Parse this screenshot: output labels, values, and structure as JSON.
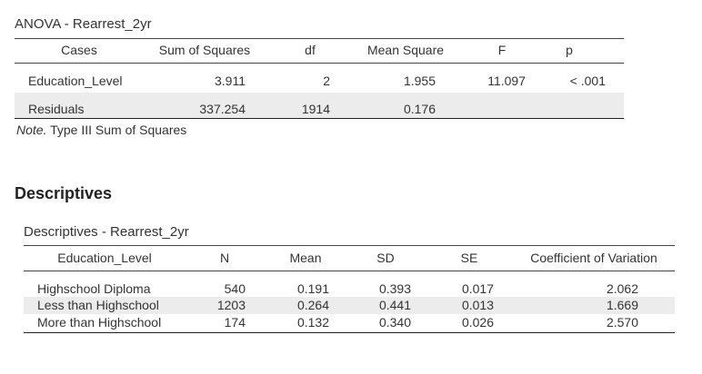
{
  "anova": {
    "title": "ANOVA - Rearrest_2yr",
    "columns": [
      "Cases",
      "Sum of Squares",
      "df",
      "Mean Square",
      "F",
      "p"
    ],
    "rows": [
      {
        "case": "Education_Level",
        "ss": "3.911",
        "df": "2",
        "ms": "1.955",
        "f": "11.097",
        "p": "< .001"
      },
      {
        "case": "Residuals",
        "ss": "337.254",
        "df": "1914",
        "ms": "0.176",
        "f": "",
        "p": ""
      }
    ],
    "note_label": "Note.",
    "note_text": " Type III Sum of Squares"
  },
  "descriptives": {
    "heading": "Descriptives",
    "title": "Descriptives - Rearrest_2yr",
    "columns": [
      "Education_Level",
      "N",
      "Mean",
      "SD",
      "SE",
      "Coefficient of Variation"
    ],
    "rows": [
      {
        "level": "Highschool Diploma",
        "n": "540",
        "mean": "0.191",
        "sd": "0.393",
        "se": "0.017",
        "cv": "2.062"
      },
      {
        "level": "Less than Highschool",
        "n": "1203",
        "mean": "0.264",
        "sd": "0.441",
        "se": "0.013",
        "cv": "1.669"
      },
      {
        "level": "More than Highschool",
        "n": "174",
        "mean": "0.132",
        "sd": "0.340",
        "se": "0.026",
        "cv": "2.570"
      }
    ]
  },
  "colors": {
    "row_shade": "#ececec",
    "text": "#333333",
    "rule": "#222222"
  }
}
